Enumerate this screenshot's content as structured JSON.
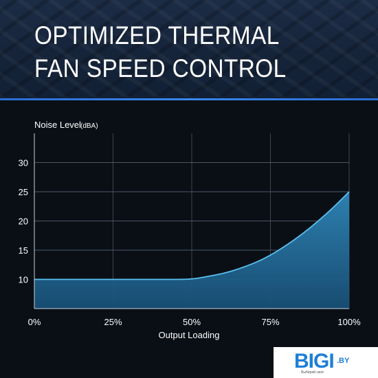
{
  "header": {
    "title": "OPTIMIZED THERMAL FAN SPEED CONTROL"
  },
  "logo": {
    "mark": "BIGI",
    "suffix": ".BY",
    "caption": "Выбирай своё"
  },
  "colors": {
    "accent": "#3a86ee",
    "fill": "#1f6f99",
    "line": "#5bc0ee",
    "grid": "#5a6a7a"
  },
  "chart_data": {
    "type": "area",
    "title": "",
    "ylabel": "Noise Level",
    "ylabel_unit": "(dBA)",
    "xlabel": "Output Loading",
    "x_ticks": [
      "0%",
      "25%",
      "50%",
      "75%",
      "100%"
    ],
    "y_ticks": [
      10,
      15,
      20,
      25,
      30
    ],
    "xlim": [
      0,
      100
    ],
    "ylim": [
      5,
      35
    ],
    "grid": true,
    "series": [
      {
        "x": [
          0,
          10,
          20,
          30,
          40,
          50,
          55,
          60,
          65,
          70,
          75,
          80,
          85,
          90,
          95,
          100
        ],
        "values": [
          10,
          10,
          10,
          10,
          10,
          10,
          10.5,
          11,
          11.8,
          12.8,
          14.1,
          15.8,
          17.7,
          19.9,
          22.3,
          25
        ]
      }
    ]
  }
}
